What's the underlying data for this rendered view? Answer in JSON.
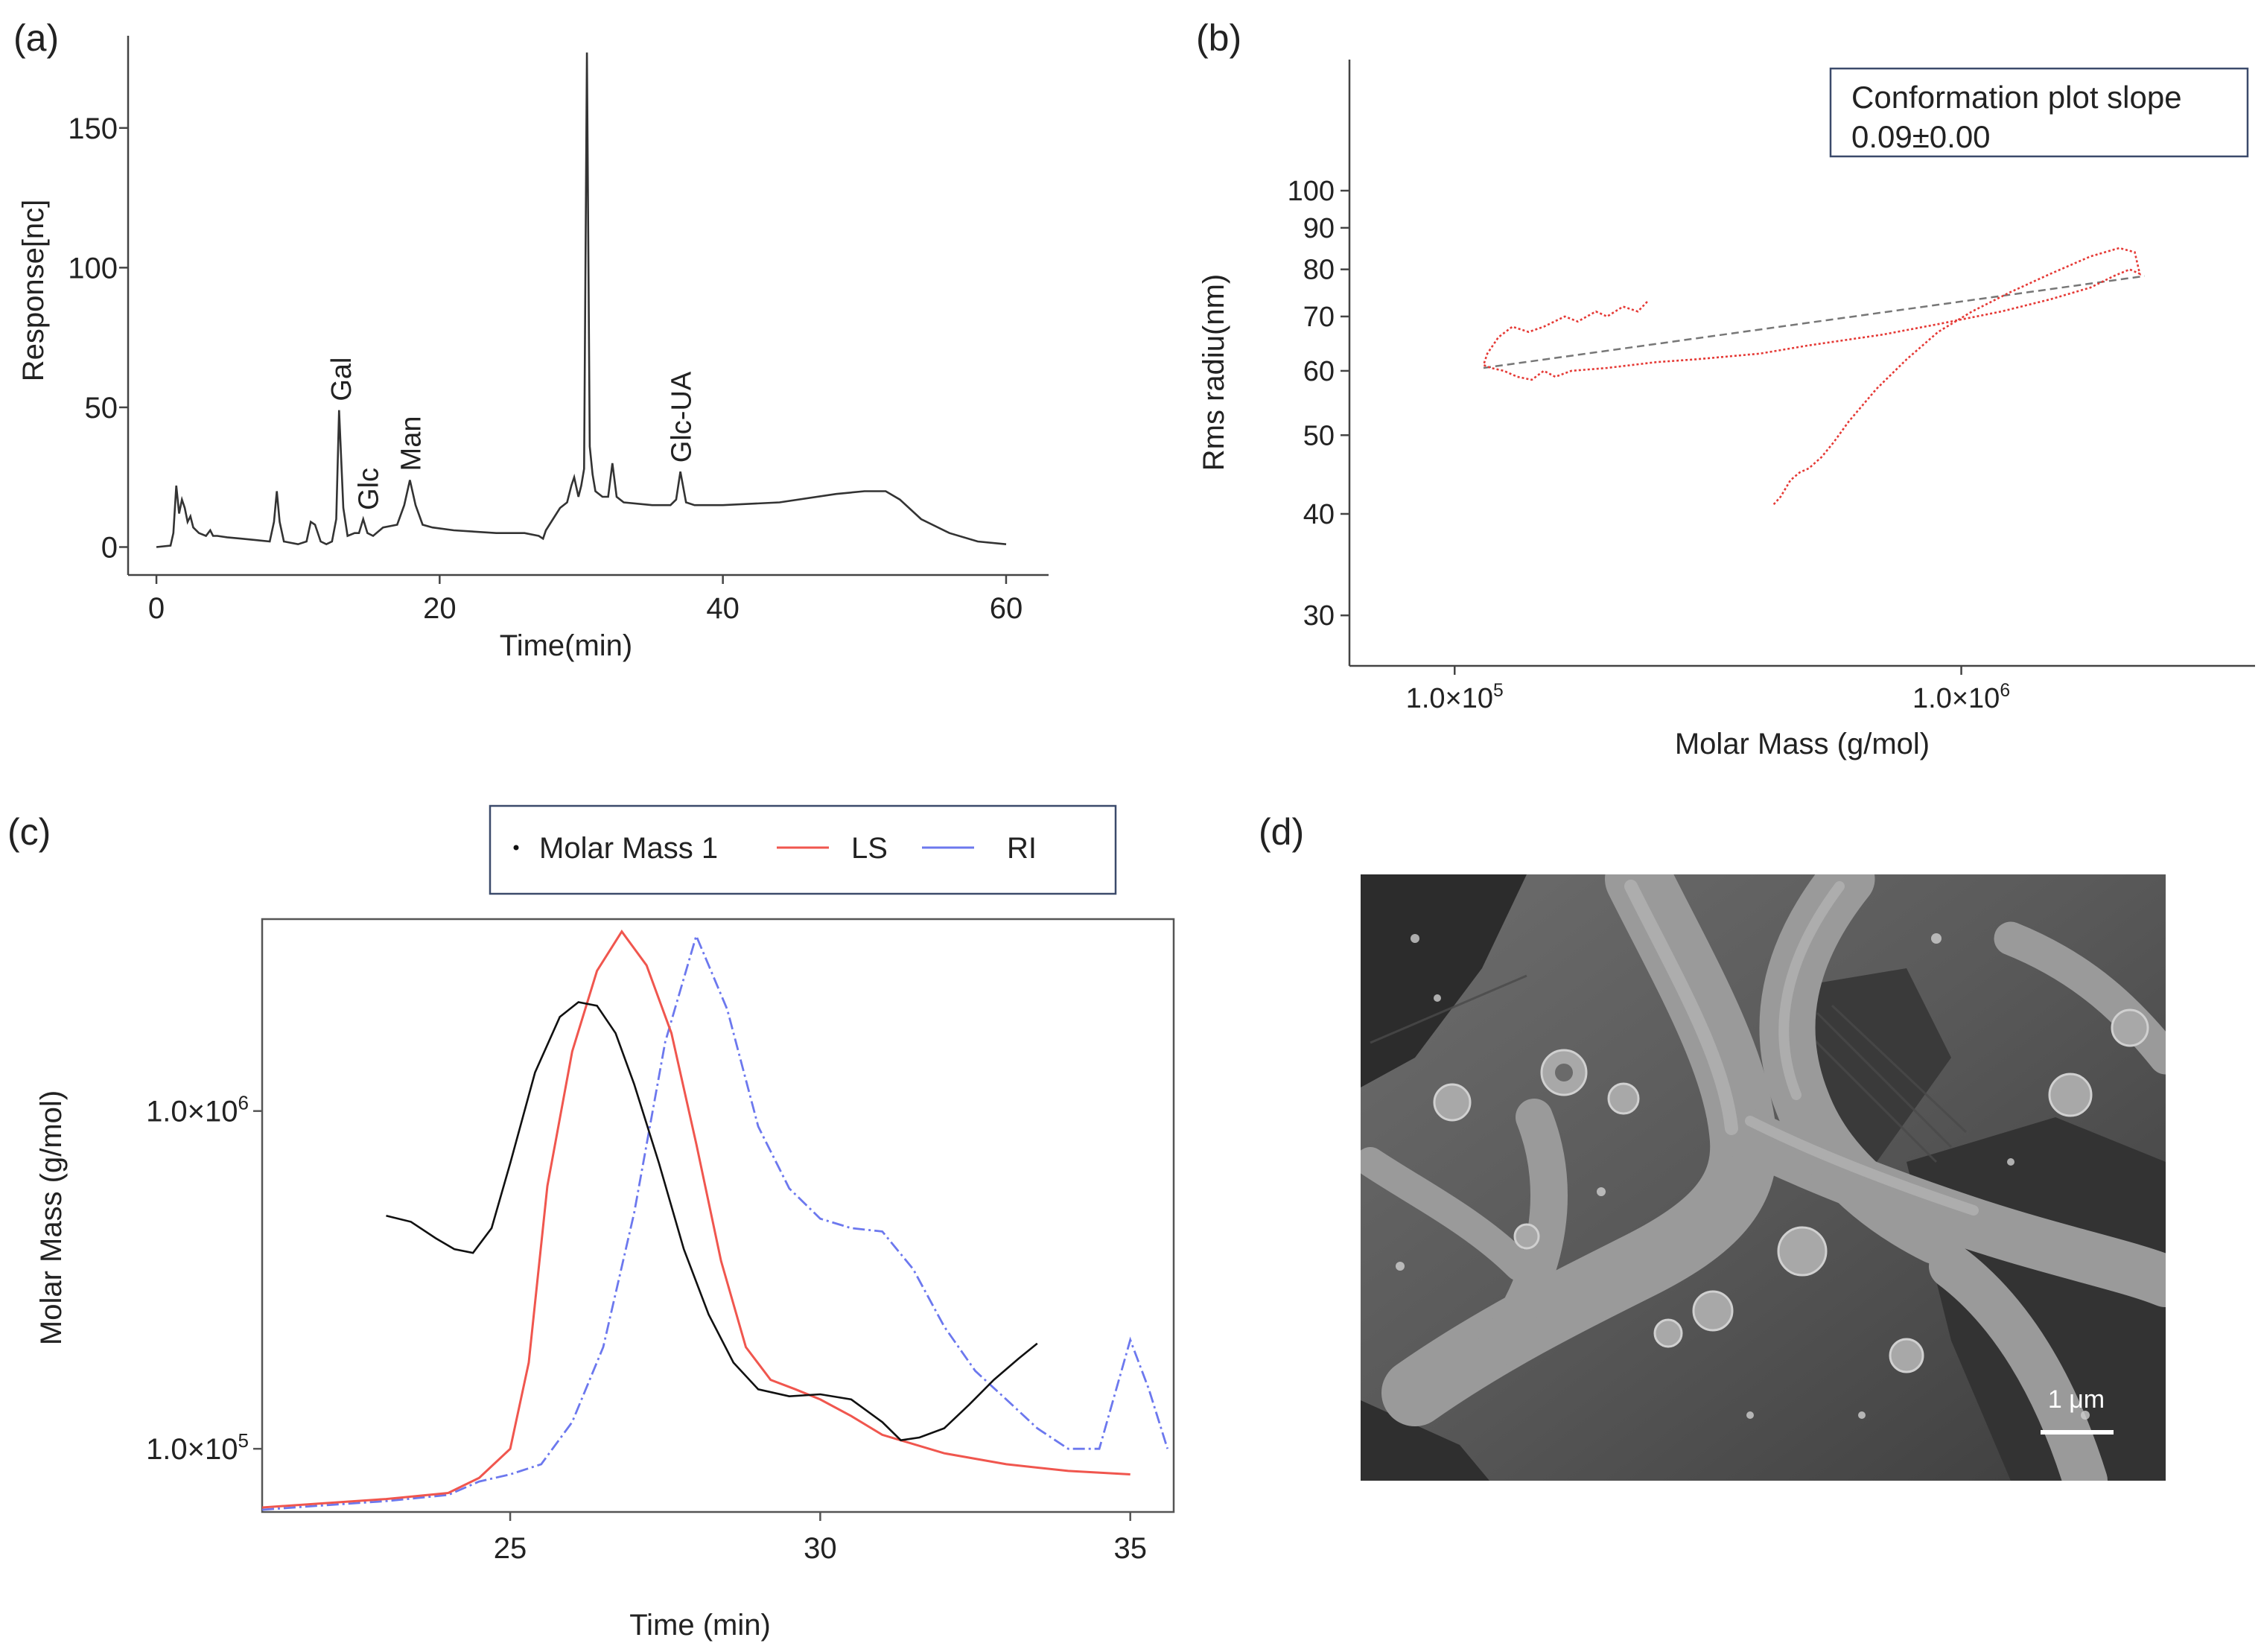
{
  "panels": [
    {
      "label": "(a)",
      "chart_data": {
        "type": "line",
        "title": "",
        "xlabel": "Time(min)",
        "ylabel": "Response[nc]",
        "xlim": [
          -2,
          63
        ],
        "ylim": [
          -10,
          183
        ],
        "xticks": [
          0,
          20,
          40,
          60
        ],
        "yticks": [
          0,
          50,
          100,
          150
        ],
        "series": [
          {
            "name": "chromatogram",
            "color": "#333333",
            "x": [
              0,
              1,
              1.2,
              1.4,
              1.6,
              1.8,
              2,
              2.2,
              2.4,
              2.6,
              3,
              3.5,
              3.8,
              4,
              4.3,
              5,
              6,
              7,
              8,
              8.3,
              8.5,
              8.7,
              9,
              10,
              10.6,
              10.9,
              11.2,
              11.6,
              12,
              12.4,
              12.7,
              12.9,
              13.2,
              13.5,
              14,
              14.3,
              14.6,
              14.9,
              15.3,
              16,
              17,
              17.5,
              17.9,
              18.3,
              18.8,
              19.5,
              21,
              24,
              26,
              27,
              27.3,
              27.5,
              28,
              28.5,
              29,
              29.3,
              29.5,
              29.8,
              30,
              30.2,
              30.4,
              30.6,
              30.8,
              31,
              31.5,
              31.9,
              32.2,
              32.5,
              33,
              35,
              36.3,
              36.7,
              37,
              37.4,
              38,
              40,
              44,
              48,
              50,
              51.5,
              52.5,
              54,
              56,
              58,
              60
            ],
            "y": [
              0,
              0.5,
              5,
              22,
              12,
              17,
              14,
              9,
              11,
              7,
              5,
              4,
              6,
              4,
              4,
              3.5,
              3,
              2.5,
              2,
              9,
              20,
              9,
              2,
              1,
              2,
              9,
              8,
              2,
              1,
              2,
              10,
              49,
              14,
              4,
              5,
              5,
              10,
              5,
              4,
              7,
              8,
              15,
              24,
              15,
              8,
              7,
              6,
              5,
              5,
              4,
              3,
              6,
              10,
              14,
              16,
              22,
              25,
              18,
              22,
              28,
              177,
              36,
              26,
              20,
              18,
              18,
              30,
              18,
              16,
              15,
              15,
              17,
              27,
              16,
              15,
              15,
              16,
              19,
              20,
              20,
              17,
              10,
              5,
              2,
              1
            ]
          }
        ],
        "annotations": [
          {
            "text": "Gal",
            "x": 13,
            "y": 49
          },
          {
            "text": "Glc",
            "x": 14.9,
            "y": 10
          },
          {
            "text": "Man",
            "x": 17.9,
            "y": 24
          },
          {
            "text": "Glc-UA",
            "x": 37,
            "y": 27
          }
        ]
      }
    },
    {
      "label": "(b)",
      "chart_data": {
        "type": "scatter",
        "title": "",
        "xlabel": "Molar Mass (g/mol)",
        "ylabel": "Rms radiu(nm)",
        "xscale": "log",
        "yscale": "log",
        "xlim": [
          62000,
          3800000
        ],
        "ylim": [
          26,
          145
        ],
        "xticks": [
          100000,
          1000000
        ],
        "xticklabels": [
          "1.0×10^5",
          "1.0×10^6"
        ],
        "yticks": [
          30,
          40,
          50,
          60,
          70,
          80,
          90,
          100
        ],
        "legend": {
          "title": "Conformation plot slope",
          "value": "0.09±0.00",
          "position": "top-right"
        },
        "series": [
          {
            "name": "rms radius",
            "color": "#e53935",
            "x": [
              240000,
              230000,
              215000,
              200000,
              190000,
              175000,
              165000,
              150000,
              140000,
              130000,
              122000,
              116000,
              114000,
              118000,
              125000,
              133000,
              142000,
              150000,
              158000,
              170000,
              200000,
              250000,
              300000,
              400000,
              500000,
              700000,
              900000,
              1200000,
              1500000,
              1800000,
              2000000,
              2150000,
              2250000,
              2200000,
              2050000,
              1800000,
              1500000,
              1250000,
              1050000,
              900000,
              780000,
              680000,
              600000,
              560000,
              530000,
              500000,
              480000,
              460000,
              440000,
              425000
            ],
            "y": [
              73,
              71,
              72,
              70,
              71,
              69,
              70,
              68,
              67,
              68,
              66,
              63,
              61,
              60.5,
              60,
              59,
              58.5,
              60,
              59,
              60,
              60.5,
              61.5,
              62,
              63,
              64.5,
              66.5,
              68.5,
              71,
              73.5,
              76,
              78.5,
              80,
              79,
              84,
              85,
              83,
              79,
              75,
              71,
              67,
              62,
              57,
              52,
              49,
              47,
              45.5,
              45,
              44,
              42,
              41
            ]
          },
          {
            "name": "fit",
            "color": "#888888",
            "x": [
              114000,
              2300000
            ],
            "y": [
              60.5,
              78.5
            ]
          }
        ]
      }
    },
    {
      "label": "(c)",
      "chart_data": {
        "type": "line",
        "title": "",
        "xlabel": "Time (min)",
        "ylabel": "Molar Mass (g/mol)",
        "yscale": "log",
        "xlim": [
          21,
          35.7
        ],
        "ylim": [
          65000,
          3700000
        ],
        "xticks": [
          25,
          30,
          35
        ],
        "yticks": [
          100000,
          1000000
        ],
        "yticklabels": [
          "1.0×10^5",
          "1.0×10^6"
        ],
        "legend": {
          "entries": [
            "Molar Mass 1",
            "LS",
            "RI"
          ],
          "position": "top"
        },
        "series": [
          {
            "name": "Molar Mass 1",
            "color": "#111111",
            "x": [
              23,
              23.4,
              23.8,
              24.1,
              24.4,
              24.7,
              25,
              25.4,
              25.8,
              26.1,
              26.4,
              26.7,
              27,
              27.4,
              27.8,
              28.2,
              28.6,
              29,
              29.5,
              30,
              30.5,
              31,
              31.3,
              31.6,
              32,
              32.4,
              32.8,
              33.2,
              33.5
            ],
            "y": [
              490000,
              470000,
              420000,
              390000,
              380000,
              450000,
              700000,
              1300000,
              1900000,
              2100000,
              2050000,
              1700000,
              1200000,
              700000,
              390000,
              250000,
              180000,
              150000,
              143000,
              145000,
              140000,
              120000,
              106000,
              108000,
              115000,
              135000,
              160000,
              185000,
              205000
            ]
          },
          {
            "name": "LS",
            "color": "#f0564e",
            "x": [
              21,
              22,
              23,
              24,
              24.5,
              25,
              25.3,
              25.6,
              26,
              26.4,
              26.8,
              27.2,
              27.6,
              28,
              28.4,
              28.8,
              29.2,
              29.6,
              30,
              30.5,
              31,
              32,
              33,
              34,
              35
            ],
            "y": [
              67000,
              69000,
              71000,
              74000,
              82000,
              100000,
              180000,
              600000,
              1500000,
              2600000,
              3400000,
              2700000,
              1700000,
              800000,
              360000,
              200000,
              160000,
              150000,
              140000,
              125000,
              110000,
              97000,
              90000,
              86000,
              84000
            ]
          },
          {
            "name": "RI",
            "color": "#6c78ee",
            "x": [
              21,
              22,
              23,
              24,
              24.5,
              25,
              25.5,
              26,
              26.5,
              27,
              27.5,
              28,
              28.5,
              29,
              29.5,
              30,
              30.5,
              31,
              31.5,
              32,
              32.5,
              33,
              33.5,
              34,
              34.5,
              35,
              35.3,
              35.6
            ],
            "y": [
              66000,
              68000,
              70000,
              73000,
              80000,
              84000,
              90000,
              120000,
              200000,
              500000,
              1600000,
              3300000,
              2000000,
              900000,
              590000,
              480000,
              450000,
              440000,
              340000,
              230000,
              170000,
              140000,
              115000,
              100000,
              100000,
              210000,
              150000,
              100000
            ]
          }
        ]
      }
    },
    {
      "label": "(d)",
      "image": {
        "type": "SEM micrograph",
        "scale_bar": "1 μm"
      }
    }
  ]
}
